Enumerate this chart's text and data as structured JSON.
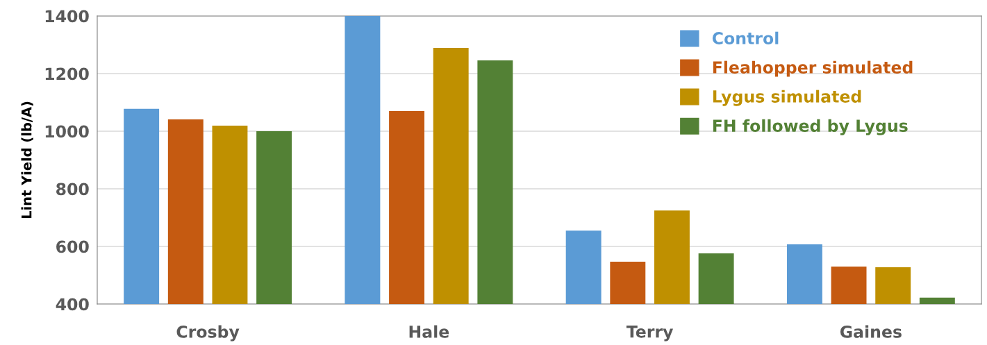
{
  "chart_data": {
    "type": "bar",
    "ylabel": "Lint Yield (lb/A)",
    "categories": [
      "Crosby",
      "Hale",
      "Terry",
      "Gaines"
    ],
    "series": [
      {
        "name": "Control",
        "color": "#5b9bd5",
        "values": [
          1078,
          1400,
          655,
          607
        ]
      },
      {
        "name": "Fleahopper simulated",
        "color": "#c55a11",
        "values": [
          1041,
          1070,
          547,
          530
        ]
      },
      {
        "name": "Lygus simulated",
        "color": "#bf9000",
        "values": [
          1019,
          1289,
          725,
          528
        ]
      },
      {
        "name": "FH followed by Lygus",
        "color": "#538135",
        "values": [
          1000,
          1246,
          576,
          422
        ]
      }
    ],
    "ylim": [
      400,
      1400
    ],
    "yticks": [
      400,
      600,
      800,
      1000,
      1200,
      1400
    ],
    "grid": "y",
    "legend": "top right"
  }
}
